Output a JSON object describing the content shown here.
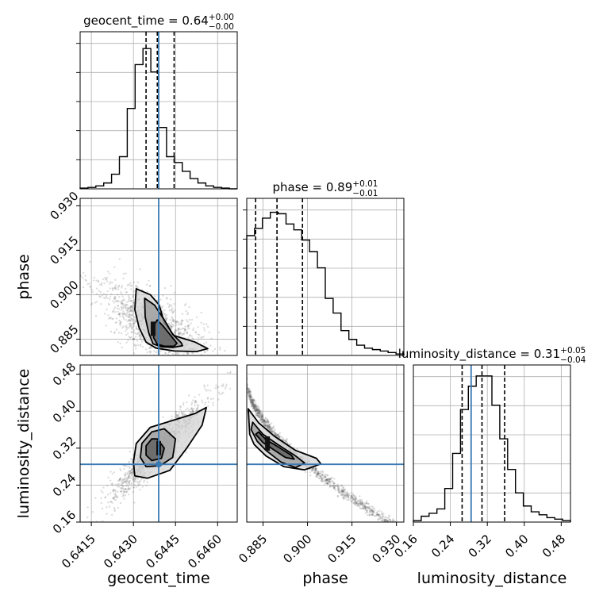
{
  "chart_data": {
    "type": "corner",
    "colors": {
      "truth": "#3a7ab3",
      "hist": "#000000",
      "quantile": "#000000",
      "samples": "#666666",
      "grid": "#b0b0b0",
      "background": "#ffffff"
    },
    "parameters": [
      {
        "name": "geocent_time",
        "range": [
          0.6411,
          0.6467
        ],
        "truth": 0.6439,
        "title_main": "geocent_time = 0.64",
        "title_plus": "+0.00",
        "title_minus": "−0.00",
        "quantiles": [
          0.64345,
          0.64385,
          0.64445
        ],
        "ticks": [
          0.6415,
          0.643,
          0.6445,
          0.646
        ],
        "tick_labels": [
          "0.6415",
          "0.6430",
          "0.6445",
          "0.6460"
        ],
        "label": "geocent_time"
      },
      {
        "name": "phase",
        "range": [
          0.8795,
          0.9325
        ],
        "truth": null,
        "title_main": "phase = 0.89",
        "title_plus": "+0.01",
        "title_minus": "−0.01",
        "quantiles": [
          0.8825,
          0.8897,
          0.8983
        ],
        "ticks": [
          0.885,
          0.9,
          0.915,
          0.93
        ],
        "tick_labels": [
          "0.885",
          "0.900",
          "0.915",
          "0.930"
        ],
        "label": "phase"
      },
      {
        "name": "luminosity_distance",
        "range": [
          0.16,
          0.5
        ],
        "truth": 0.285,
        "title_main": "luminosity_distance = 0.31",
        "title_plus": "+0.05",
        "title_minus": "−0.04",
        "quantiles": [
          0.2655,
          0.3085,
          0.3575
        ],
        "ticks": [
          0.16,
          0.24,
          0.32,
          0.4,
          0.48
        ],
        "tick_labels": [
          "0.16",
          "0.24",
          "0.32",
          "0.40",
          "0.48"
        ],
        "label": "luminosity_distance"
      }
    ],
    "histograms": [
      {
        "param": "geocent_time",
        "values": [
          0.005,
          0.01,
          0.02,
          0.04,
          0.1,
          0.22,
          0.55,
          0.85,
          0.96,
          0.8,
          0.42,
          0.22,
          0.18,
          0.12,
          0.07,
          0.04,
          0.02,
          0.01,
          0.005,
          0.0
        ]
      },
      {
        "param": "phase",
        "values": [
          0.82,
          0.87,
          0.94,
          0.98,
          0.97,
          0.9,
          0.86,
          0.79,
          0.71,
          0.6,
          0.39,
          0.29,
          0.17,
          0.11,
          0.07,
          0.05,
          0.04,
          0.03,
          0.02,
          0.01
        ]
      },
      {
        "param": "luminosity_distance",
        "values": [
          0.01,
          0.04,
          0.06,
          0.09,
          0.23,
          0.47,
          0.77,
          0.93,
          1.0,
          1.0,
          0.8,
          0.57,
          0.36,
          0.2,
          0.11,
          0.07,
          0.05,
          0.03,
          0.02,
          0.01
        ]
      }
    ],
    "pairs": [
      {
        "x": "geocent_time",
        "y": "phase",
        "center": [
          0.6437,
          0.8885
        ],
        "contours": [
          [
            [
              0.64405,
              0.8895
            ],
            [
              0.64435,
              0.886
            ],
            [
              0.64455,
              0.8836
            ],
            [
              0.64445,
              0.8826
            ],
            [
              0.6441,
              0.8826
            ],
            [
              0.64385,
              0.8833
            ],
            [
              0.64372,
              0.8855
            ],
            [
              0.64372,
              0.8895
            ],
            [
              0.64385,
              0.8915
            ]
          ],
          [
            [
              0.6434,
              0.8988
            ],
            [
              0.64375,
              0.8965
            ],
            [
              0.6441,
              0.8915
            ],
            [
              0.6444,
              0.8866
            ],
            [
              0.6447,
              0.8838
            ],
            [
              0.64475,
              0.8828
            ],
            [
              0.6444,
              0.8822
            ],
            [
              0.644,
              0.8824
            ],
            [
              0.6437,
              0.8834
            ],
            [
              0.64355,
              0.887
            ],
            [
              0.64342,
              0.8925
            ]
          ],
          [
            [
              0.6431,
              0.902
            ],
            [
              0.6436,
              0.9
            ],
            [
              0.64392,
              0.8965
            ],
            [
              0.6441,
              0.8905
            ],
            [
              0.64445,
              0.8862
            ],
            [
              0.6452,
              0.884
            ],
            [
              0.64565,
              0.8818
            ],
            [
              0.64525,
              0.8808
            ],
            [
              0.64445,
              0.881
            ],
            [
              0.6438,
              0.882
            ],
            [
              0.64345,
              0.884
            ],
            [
              0.6432,
              0.889
            ],
            [
              0.64305,
              0.895
            ]
          ]
        ]
      },
      {
        "x": "geocent_time",
        "y": "luminosity_distance",
        "center": [
          0.6439,
          0.32
        ],
        "contours": [
          [
            [
              0.64385,
              0.34
            ],
            [
              0.6441,
              0.32
            ],
            [
              0.644,
              0.298
            ],
            [
              0.64365,
              0.293
            ],
            [
              0.64345,
              0.305
            ],
            [
              0.64345,
              0.325
            ],
            [
              0.64365,
              0.34
            ]
          ],
          [
            [
              0.6441,
              0.362
            ],
            [
              0.6445,
              0.34
            ],
            [
              0.6444,
              0.3
            ],
            [
              0.64395,
              0.282
            ],
            [
              0.64345,
              0.28
            ],
            [
              0.64325,
              0.3
            ],
            [
              0.6433,
              0.33
            ],
            [
              0.64365,
              0.355
            ]
          ],
          [
            [
              0.6444,
              0.38
            ],
            [
              0.6452,
              0.395
            ],
            [
              0.6456,
              0.408
            ],
            [
              0.64545,
              0.37
            ],
            [
              0.6449,
              0.32
            ],
            [
              0.6443,
              0.272
            ],
            [
              0.6435,
              0.255
            ],
            [
              0.64305,
              0.26
            ],
            [
              0.643,
              0.29
            ],
            [
              0.6431,
              0.33
            ],
            [
              0.6436,
              0.365
            ]
          ]
        ]
      },
      {
        "x": "phase",
        "y": "luminosity_distance",
        "center": [
          0.8865,
          0.33
        ],
        "contours": [
          [
            [
              0.8835,
              0.355
            ],
            [
              0.886,
              0.338
            ],
            [
              0.889,
              0.327
            ],
            [
              0.8945,
              0.305
            ],
            [
              0.8955,
              0.296
            ],
            [
              0.8925,
              0.3
            ],
            [
              0.888,
              0.319
            ],
            [
              0.885,
              0.332
            ],
            [
              0.8825,
              0.35
            ]
          ],
          [
            [
              0.8815,
              0.376
            ],
            [
              0.885,
              0.35
            ],
            [
              0.89,
              0.328
            ],
            [
              0.896,
              0.303
            ],
            [
              0.899,
              0.288
            ],
            [
              0.896,
              0.278
            ],
            [
              0.891,
              0.29
            ],
            [
              0.886,
              0.315
            ],
            [
              0.883,
              0.335
            ],
            [
              0.881,
              0.36
            ]
          ],
          [
            [
              0.88,
              0.405
            ],
            [
              0.8835,
              0.375
            ],
            [
              0.889,
              0.345
            ],
            [
              0.896,
              0.315
            ],
            [
              0.903,
              0.298
            ],
            [
              0.9045,
              0.286
            ],
            [
              0.899,
              0.273
            ],
            [
              0.892,
              0.28
            ],
            [
              0.886,
              0.303
            ],
            [
              0.882,
              0.328
            ],
            [
              0.8805,
              0.35
            ]
          ]
        ]
      }
    ]
  }
}
